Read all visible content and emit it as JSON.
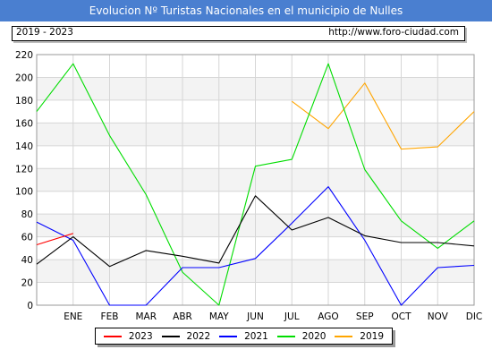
{
  "header": {
    "title": "Evolucion Nº Turistas Nacionales en el municipio de Nulles",
    "period": "2019 - 2023",
    "url": "http://www.foro-ciudad.com"
  },
  "chart_data": {
    "type": "line",
    "title": "Evolucion Nº Turistas Nacionales en el municipio de Nulles",
    "xlabel": "",
    "ylabel": "",
    "categories": [
      "ENE",
      "FEB",
      "MAR",
      "ABR",
      "MAY",
      "JUN",
      "JUL",
      "AGO",
      "SEP",
      "OCT",
      "NOV",
      "DIC"
    ],
    "ylim": [
      0,
      220
    ],
    "yticks": [
      0,
      20,
      40,
      60,
      80,
      100,
      120,
      140,
      160,
      180,
      200,
      220
    ],
    "grid": true,
    "legend_position": "bottom",
    "series": [
      {
        "name": "2023",
        "color": "#ff0000",
        "x": [
          0,
          1
        ],
        "values": [
          53,
          63
        ]
      },
      {
        "name": "2022",
        "color": "#000000",
        "x": [
          0,
          1,
          2,
          3,
          4,
          5,
          6,
          7,
          8,
          9,
          10,
          11,
          12
        ],
        "values": [
          36,
          60,
          34,
          48,
          43,
          37,
          96,
          66,
          77,
          61,
          55,
          55,
          52
        ]
      },
      {
        "name": "2021",
        "color": "#0000ff",
        "x": [
          0,
          1,
          2,
          3,
          4,
          5,
          6,
          7,
          8,
          9,
          10,
          11,
          12
        ],
        "values": [
          73,
          57,
          0,
          0,
          33,
          33,
          41,
          72,
          104,
          57,
          0,
          33,
          35
        ]
      },
      {
        "name": "2020",
        "color": "#00dd00",
        "x": [
          0,
          1,
          2,
          3,
          4,
          5,
          6,
          7,
          8,
          9,
          10,
          11,
          12
        ],
        "values": [
          170,
          212,
          149,
          97,
          29,
          0,
          122,
          128,
          212,
          119,
          74,
          50,
          74
        ]
      },
      {
        "name": "2019",
        "color": "#ffa500",
        "x": [
          7,
          8,
          9,
          10,
          11,
          12
        ],
        "values": [
          179,
          155,
          195,
          137,
          139,
          170
        ]
      }
    ]
  }
}
